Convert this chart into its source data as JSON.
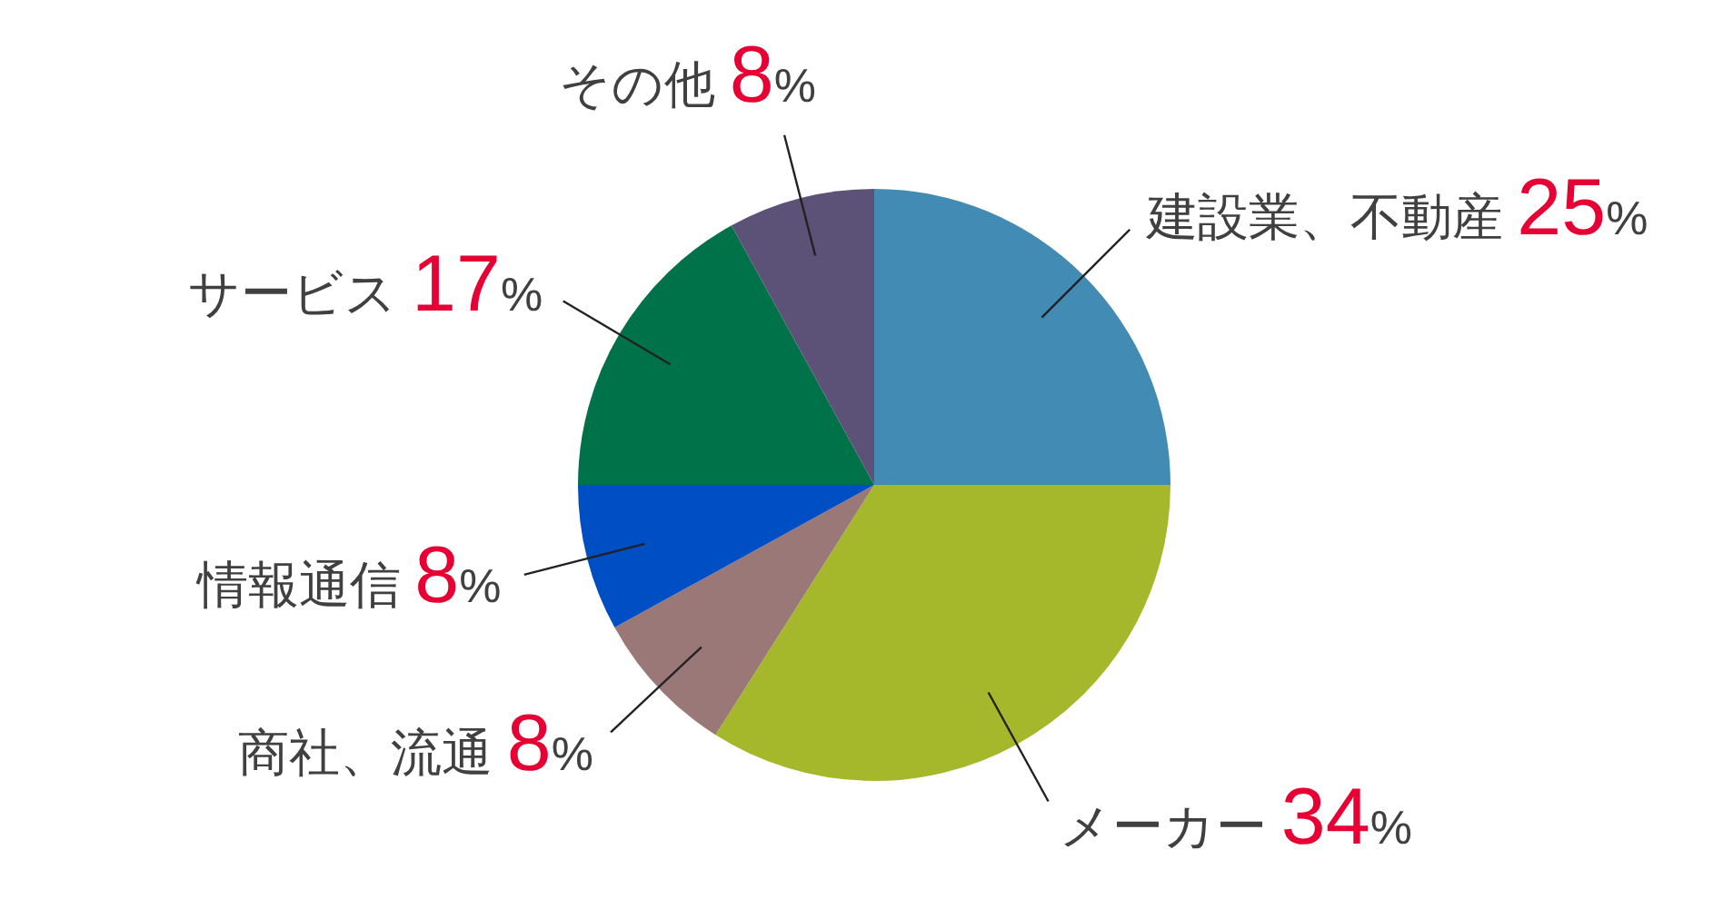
{
  "chart_data": {
    "type": "pie",
    "categories": [
      "建設業、不動産",
      "メーカー",
      "商社、流通",
      "情報通信",
      "サービス",
      "その他"
    ],
    "values": [
      25,
      34,
      8,
      8,
      17,
      8
    ],
    "colors": [
      "#428bb4",
      "#a5b82c",
      "#9b7878",
      "#004ec3",
      "#007249",
      "#5c5278"
    ],
    "value_labels": [
      "25%",
      "34%",
      "8%",
      "8%",
      "17%",
      "8%"
    ]
  }
}
